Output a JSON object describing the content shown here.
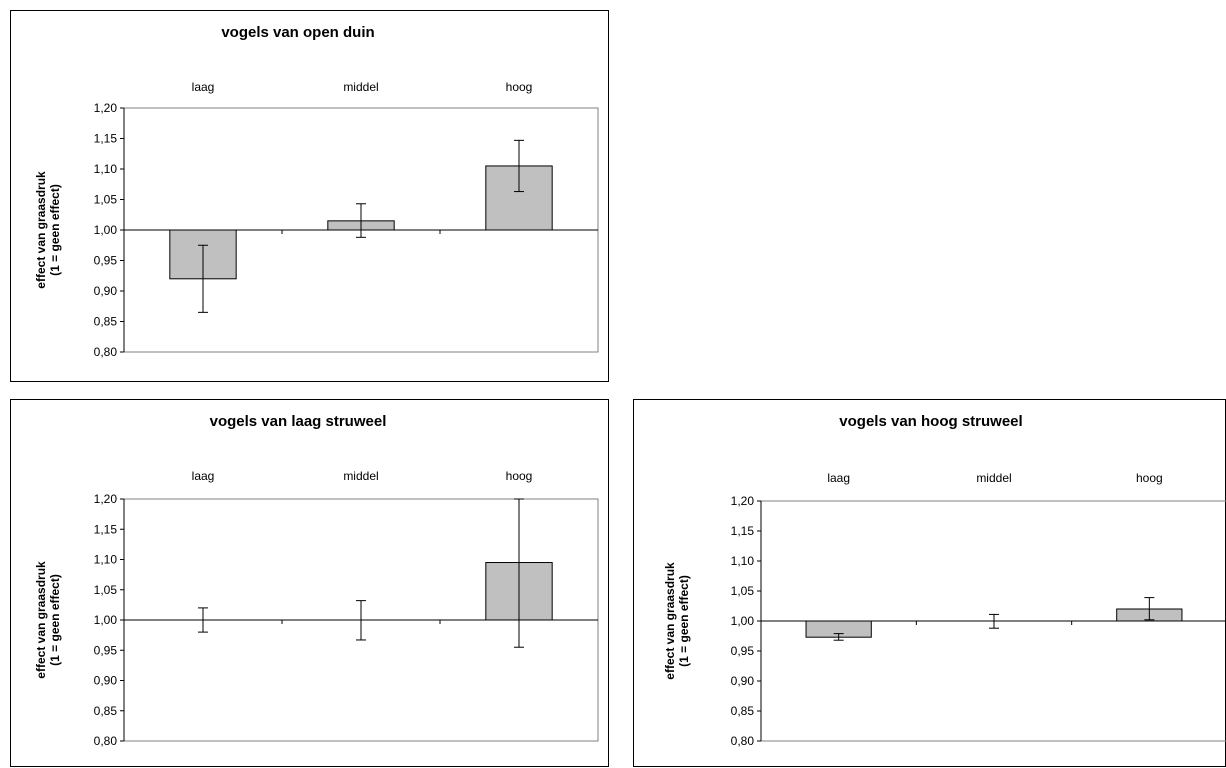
{
  "chart_data": [
    {
      "type": "bar",
      "title": "vogels van open duin",
      "categories": [
        "laag",
        "middel",
        "hoog"
      ],
      "values": [
        0.92,
        1.015,
        1.105
      ],
      "error_low": [
        0.865,
        0.988,
        1.063
      ],
      "error_high": [
        0.975,
        1.043,
        1.147
      ],
      "baseline": 1.0,
      "ylabel": [
        "effect van graasdruk",
        "(1 = geen effect)"
      ],
      "ylim": [
        0.8,
        1.2
      ],
      "yticks": [
        "0,80",
        "0,85",
        "0,90",
        "0,95",
        "1,00",
        "1,05",
        "1,10",
        "1,15",
        "1,20"
      ],
      "bar_color": "#c0c0c0"
    },
    {
      "type": "bar",
      "title": "vogels van laag struweel",
      "categories": [
        "laag",
        "middel",
        "hoog"
      ],
      "values": [
        1.0,
        1.0,
        1.095
      ],
      "error_low": [
        0.98,
        0.967,
        0.955
      ],
      "error_high": [
        1.02,
        1.032,
        1.2
      ],
      "baseline": 1.0,
      "ylabel": [
        "effect van graasdruk",
        "(1 = geen effect)"
      ],
      "ylim": [
        0.8,
        1.2
      ],
      "yticks": [
        "0,80",
        "0,85",
        "0,90",
        "0,95",
        "1,00",
        "1,05",
        "1,10",
        "1,15",
        "1,20"
      ],
      "bar_color": "#c0c0c0"
    },
    {
      "type": "bar",
      "title": "vogels van hoog struweel",
      "categories": [
        "laag",
        "middel",
        "hoog"
      ],
      "values": [
        0.973,
        1.0,
        1.02
      ],
      "error_low": [
        0.968,
        0.988,
        1.002
      ],
      "error_high": [
        0.979,
        1.011,
        1.039
      ],
      "baseline": 1.0,
      "ylabel": [
        "effect van graasdruk",
        "(1 = geen effect)"
      ],
      "ylim": [
        0.8,
        1.2
      ],
      "yticks": [
        "0,80",
        "0,85",
        "0,90",
        "0,95",
        "1,00",
        "1,05",
        "1,10",
        "1,15",
        "1,20"
      ],
      "bar_color": "#c0c0c0"
    }
  ]
}
